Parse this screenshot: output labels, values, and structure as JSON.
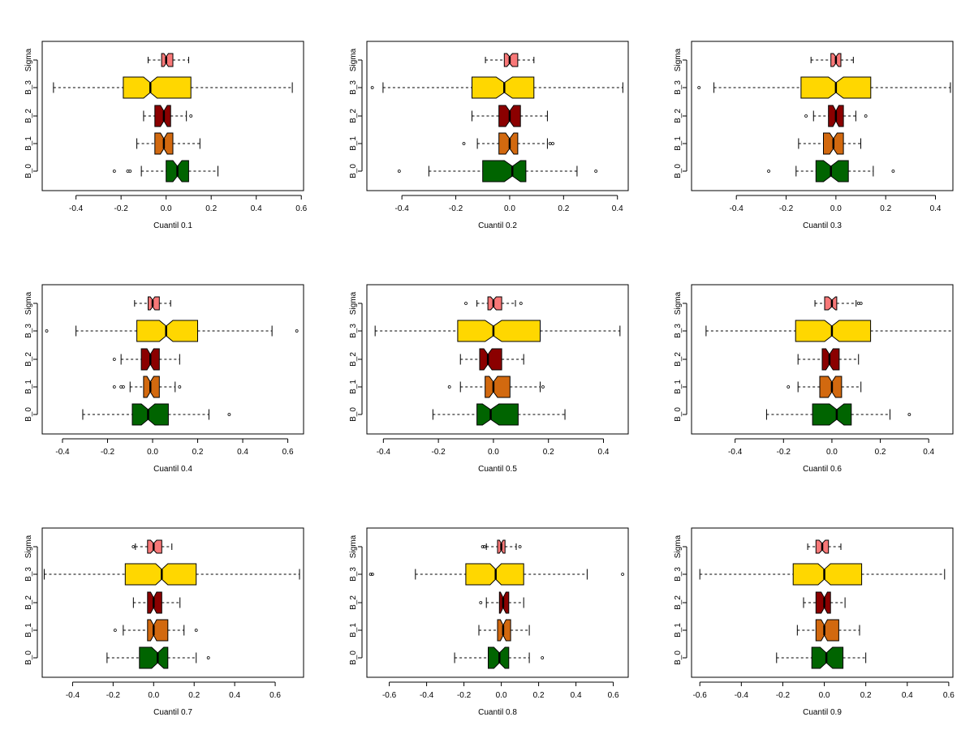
{
  "colors": {
    "Sigma": "#f87878",
    "B_3": "#ffd700",
    "B_2": "#8b0000",
    "B_1": "#d2690f",
    "B_0": "#006400"
  },
  "chart_data": [
    {
      "type": "boxplot",
      "orientation": "horizontal",
      "notched": true,
      "xlabel": "Cuantil 0.1",
      "xlim": [
        -0.55,
        0.61
      ],
      "xticks": [
        -0.4,
        -0.2,
        0.0,
        0.2,
        0.4,
        0.6
      ],
      "categories": [
        "B_0",
        "B_1",
        "B_2",
        "B_3",
        "Sigma"
      ],
      "boxes": {
        "Sigma": {
          "min": -0.08,
          "q1": -0.02,
          "median": 0.0,
          "q3": 0.03,
          "max": 0.1,
          "notch": [
            -0.01,
            0.01
          ],
          "outliers": []
        },
        "B_3": {
          "min": -0.5,
          "q1": -0.19,
          "median": -0.07,
          "q3": 0.11,
          "max": 0.56,
          "notch": [
            -0.1,
            -0.04
          ],
          "outliers": []
        },
        "B_2": {
          "min": -0.1,
          "q1": -0.05,
          "median": -0.01,
          "q3": 0.02,
          "max": 0.09,
          "notch": [
            -0.025,
            0.005
          ],
          "outliers": [
            0.11
          ]
        },
        "B_1": {
          "min": -0.13,
          "q1": -0.05,
          "median": -0.01,
          "q3": 0.03,
          "max": 0.15,
          "notch": [
            -0.025,
            0.005
          ],
          "outliers": []
        },
        "B_0": {
          "min": -0.11,
          "q1": -0.0,
          "median": 0.05,
          "q3": 0.1,
          "max": 0.23,
          "notch": [
            0.03,
            0.07
          ],
          "outliers": [
            -0.17,
            -0.16,
            -0.23
          ]
        }
      }
    },
    {
      "type": "boxplot",
      "orientation": "horizontal",
      "notched": true,
      "xlabel": "Cuantil 0.2",
      "xlim": [
        -0.53,
        0.44
      ],
      "xticks": [
        -0.4,
        -0.2,
        0.0,
        0.2,
        0.4
      ],
      "categories": [
        "B_0",
        "B_1",
        "B_2",
        "B_3",
        "Sigma"
      ],
      "boxes": {
        "Sigma": {
          "min": -0.09,
          "q1": -0.02,
          "median": 0.0,
          "q3": 0.03,
          "max": 0.09,
          "notch": [
            -0.01,
            0.01
          ],
          "outliers": []
        },
        "B_3": {
          "min": -0.47,
          "q1": -0.14,
          "median": -0.02,
          "q3": 0.09,
          "max": 0.42,
          "notch": [
            -0.05,
            0.01
          ],
          "outliers": [
            -0.51
          ]
        },
        "B_2": {
          "min": -0.14,
          "q1": -0.04,
          "median": 0.0,
          "q3": 0.04,
          "max": 0.14,
          "notch": [
            -0.015,
            0.015
          ],
          "outliers": []
        },
        "B_1": {
          "min": -0.12,
          "q1": -0.04,
          "median": 0.0,
          "q3": 0.03,
          "max": 0.14,
          "notch": [
            -0.015,
            0.015
          ],
          "outliers": [
            -0.17,
            0.15,
            0.16
          ]
        },
        "B_0": {
          "min": -0.3,
          "q1": -0.1,
          "median": 0.01,
          "q3": 0.06,
          "max": 0.25,
          "notch": [
            -0.02,
            0.04
          ],
          "outliers": [
            -0.41,
            0.32
          ]
        }
      }
    },
    {
      "type": "boxplot",
      "orientation": "horizontal",
      "notched": true,
      "xlabel": "Cuantil 0.3",
      "xlim": [
        -0.58,
        0.47
      ],
      "xticks": [
        -0.4,
        -0.2,
        0.0,
        0.2,
        0.4
      ],
      "categories": [
        "B_0",
        "B_1",
        "B_2",
        "B_3",
        "Sigma"
      ],
      "boxes": {
        "Sigma": {
          "min": -0.1,
          "q1": -0.02,
          "median": 0.0,
          "q3": 0.02,
          "max": 0.07,
          "notch": [
            -0.01,
            0.01
          ],
          "outliers": []
        },
        "B_3": {
          "min": -0.49,
          "q1": -0.14,
          "median": 0.0,
          "q3": 0.14,
          "max": 0.46,
          "notch": [
            -0.03,
            0.03
          ],
          "outliers": [
            -0.55
          ]
        },
        "B_2": {
          "min": -0.09,
          "q1": -0.03,
          "median": 0.0,
          "q3": 0.03,
          "max": 0.08,
          "notch": [
            -0.012,
            0.012
          ],
          "outliers": [
            -0.12,
            0.12
          ]
        },
        "B_1": {
          "min": -0.15,
          "q1": -0.05,
          "median": -0.01,
          "q3": 0.03,
          "max": 0.1,
          "notch": [
            -0.025,
            0.005
          ],
          "outliers": []
        },
        "B_0": {
          "min": -0.16,
          "q1": -0.08,
          "median": -0.02,
          "q3": 0.05,
          "max": 0.15,
          "notch": [
            -0.05,
            0.01
          ],
          "outliers": [
            -0.27,
            0.23
          ]
        }
      }
    },
    {
      "type": "boxplot",
      "orientation": "horizontal",
      "notched": true,
      "xlabel": "Cuantil 0.4",
      "xlim": [
        -0.49,
        0.67
      ],
      "xticks": [
        -0.4,
        -0.2,
        0.0,
        0.2,
        0.4,
        0.6
      ],
      "categories": [
        "B_0",
        "B_1",
        "B_2",
        "B_3",
        "Sigma"
      ],
      "boxes": {
        "Sigma": {
          "min": -0.08,
          "q1": -0.02,
          "median": 0.0,
          "q3": 0.03,
          "max": 0.08,
          "notch": [
            -0.01,
            0.01
          ],
          "outliers": []
        },
        "B_3": {
          "min": -0.34,
          "q1": -0.07,
          "median": 0.06,
          "q3": 0.2,
          "max": 0.53,
          "notch": [
            0.03,
            0.09
          ],
          "outliers": [
            -0.47,
            0.64
          ]
        },
        "B_2": {
          "min": -0.14,
          "q1": -0.05,
          "median": -0.01,
          "q3": 0.03,
          "max": 0.12,
          "notch": [
            -0.025,
            0.005
          ],
          "outliers": [
            -0.17
          ]
        },
        "B_1": {
          "min": -0.1,
          "q1": -0.04,
          "median": -0.01,
          "q3": 0.03,
          "max": 0.1,
          "notch": [
            -0.025,
            0.005
          ],
          "outliers": [
            -0.17,
            -0.14,
            -0.13,
            0.12
          ]
        },
        "B_0": {
          "min": -0.31,
          "q1": -0.09,
          "median": -0.02,
          "q3": 0.07,
          "max": 0.25,
          "notch": [
            -0.05,
            0.01
          ],
          "outliers": [
            0.34
          ]
        }
      }
    },
    {
      "type": "boxplot",
      "orientation": "horizontal",
      "notched": true,
      "xlabel": "Cuantil 0.5",
      "xlim": [
        -0.46,
        0.49
      ],
      "xticks": [
        -0.4,
        -0.2,
        0.0,
        0.2,
        0.4
      ],
      "categories": [
        "B_0",
        "B_1",
        "B_2",
        "B_3",
        "Sigma"
      ],
      "boxes": {
        "Sigma": {
          "min": -0.06,
          "q1": -0.02,
          "median": 0.0,
          "q3": 0.03,
          "max": 0.08,
          "notch": [
            -0.01,
            0.01
          ],
          "outliers": [
            -0.1,
            0.1
          ]
        },
        "B_3": {
          "min": -0.43,
          "q1": -0.13,
          "median": 0.0,
          "q3": 0.17,
          "max": 0.46,
          "notch": [
            -0.03,
            0.03
          ],
          "outliers": []
        },
        "B_2": {
          "min": -0.12,
          "q1": -0.05,
          "median": -0.02,
          "q3": 0.03,
          "max": 0.11,
          "notch": [
            -0.035,
            -0.005
          ],
          "outliers": []
        },
        "B_1": {
          "min": -0.12,
          "q1": -0.03,
          "median": 0.0,
          "q3": 0.06,
          "max": 0.17,
          "notch": [
            -0.015,
            0.015
          ],
          "outliers": [
            -0.16,
            0.18
          ]
        },
        "B_0": {
          "min": -0.22,
          "q1": -0.06,
          "median": -0.01,
          "q3": 0.09,
          "max": 0.26,
          "notch": [
            -0.04,
            0.02
          ],
          "outliers": []
        }
      }
    },
    {
      "type": "boxplot",
      "orientation": "horizontal",
      "notched": true,
      "xlabel": "Cuantil 0.6",
      "xlim": [
        -0.58,
        0.5
      ],
      "xticks": [
        -0.4,
        -0.2,
        0.0,
        0.2,
        0.4
      ],
      "categories": [
        "B_0",
        "B_1",
        "B_2",
        "B_3",
        "Sigma"
      ],
      "boxes": {
        "Sigma": {
          "min": -0.07,
          "q1": -0.03,
          "median": 0.0,
          "q3": 0.02,
          "max": 0.1,
          "notch": [
            -0.015,
            0.015
          ],
          "outliers": [
            0.11,
            0.12
          ]
        },
        "B_3": {
          "min": -0.52,
          "q1": -0.15,
          "median": 0.0,
          "q3": 0.16,
          "max": 0.5,
          "notch": [
            -0.03,
            0.03
          ],
          "outliers": []
        },
        "B_2": {
          "min": -0.14,
          "q1": -0.04,
          "median": -0.01,
          "q3": 0.03,
          "max": 0.11,
          "notch": [
            -0.025,
            0.005
          ],
          "outliers": []
        },
        "B_1": {
          "min": -0.14,
          "q1": -0.05,
          "median": 0.0,
          "q3": 0.04,
          "max": 0.12,
          "notch": [
            -0.015,
            0.015
          ],
          "outliers": [
            -0.18
          ]
        },
        "B_0": {
          "min": -0.27,
          "q1": -0.08,
          "median": 0.02,
          "q3": 0.08,
          "max": 0.24,
          "notch": [
            -0.01,
            0.05
          ],
          "outliers": [
            0.32
          ]
        }
      }
    },
    {
      "type": "boxplot",
      "orientation": "horizontal",
      "notched": true,
      "xlabel": "Cuantil 0.7",
      "xlim": [
        -0.55,
        0.74
      ],
      "xticks": [
        -0.4,
        -0.2,
        0.0,
        0.2,
        0.4,
        0.6
      ],
      "categories": [
        "B_0",
        "B_1",
        "B_2",
        "B_3",
        "Sigma"
      ],
      "boxes": {
        "Sigma": {
          "min": -0.09,
          "q1": -0.03,
          "median": 0.0,
          "q3": 0.04,
          "max": 0.09,
          "notch": [
            -0.015,
            0.015
          ],
          "outliers": [
            -0.1
          ]
        },
        "B_3": {
          "min": -0.54,
          "q1": -0.14,
          "median": 0.04,
          "q3": 0.21,
          "max": 0.72,
          "notch": [
            0.01,
            0.07
          ],
          "outliers": []
        },
        "B_2": {
          "min": -0.1,
          "q1": -0.03,
          "median": 0.0,
          "q3": 0.04,
          "max": 0.13,
          "notch": [
            -0.015,
            0.015
          ],
          "outliers": []
        },
        "B_1": {
          "min": -0.15,
          "q1": -0.03,
          "median": 0.0,
          "q3": 0.07,
          "max": 0.15,
          "notch": [
            -0.015,
            0.015
          ],
          "outliers": [
            -0.19,
            0.21
          ]
        },
        "B_0": {
          "min": -0.23,
          "q1": -0.07,
          "median": 0.02,
          "q3": 0.07,
          "max": 0.21,
          "notch": [
            -0.01,
            0.05
          ],
          "outliers": [
            0.27
          ]
        }
      }
    },
    {
      "type": "boxplot",
      "orientation": "horizontal",
      "notched": true,
      "xlabel": "Cuantil 0.8",
      "xlim": [
        -0.72,
        0.68
      ],
      "xticks": [
        -0.6,
        -0.4,
        -0.2,
        0.0,
        0.2,
        0.4,
        0.6
      ],
      "categories": [
        "B_0",
        "B_1",
        "B_2",
        "B_3",
        "Sigma"
      ],
      "boxes": {
        "Sigma": {
          "min": -0.08,
          "q1": -0.02,
          "median": 0.0,
          "q3": 0.02,
          "max": 0.08,
          "notch": [
            -0.01,
            0.01
          ],
          "outliers": [
            -0.1,
            -0.09,
            0.1
          ]
        },
        "B_3": {
          "min": -0.46,
          "q1": -0.19,
          "median": -0.03,
          "q3": 0.12,
          "max": 0.46,
          "notch": [
            -0.06,
            0.0
          ],
          "outliers": [
            -0.7,
            -0.69,
            0.65
          ]
        },
        "B_2": {
          "min": -0.08,
          "q1": -0.01,
          "median": 0.01,
          "q3": 0.04,
          "max": 0.12,
          "notch": [
            -0.005,
            0.025
          ],
          "outliers": [
            -0.11
          ]
        },
        "B_1": {
          "min": -0.12,
          "q1": -0.02,
          "median": 0.01,
          "q3": 0.05,
          "max": 0.15,
          "notch": [
            -0.005,
            0.025
          ],
          "outliers": []
        },
        "B_0": {
          "min": -0.25,
          "q1": -0.07,
          "median": -0.01,
          "q3": 0.04,
          "max": 0.15,
          "notch": [
            -0.04,
            0.02
          ],
          "outliers": [
            0.22
          ]
        }
      }
    },
    {
      "type": "boxplot",
      "orientation": "horizontal",
      "notched": true,
      "xlabel": "Cuantil 0.9",
      "xlim": [
        -0.64,
        0.62
      ],
      "xticks": [
        -0.6,
        -0.4,
        -0.2,
        0.0,
        0.2,
        0.4,
        0.6
      ],
      "categories": [
        "B_0",
        "B_1",
        "B_2",
        "B_3",
        "Sigma"
      ],
      "boxes": {
        "Sigma": {
          "min": -0.08,
          "q1": -0.04,
          "median": -0.01,
          "q3": 0.02,
          "max": 0.08,
          "notch": [
            -0.025,
            0.005
          ],
          "outliers": []
        },
        "B_3": {
          "min": -0.6,
          "q1": -0.15,
          "median": 0.0,
          "q3": 0.18,
          "max": 0.58,
          "notch": [
            -0.03,
            0.03
          ],
          "outliers": []
        },
        "B_2": {
          "min": -0.1,
          "q1": -0.04,
          "median": 0.0,
          "q3": 0.03,
          "max": 0.1,
          "notch": [
            -0.015,
            0.015
          ],
          "outliers": []
        },
        "B_1": {
          "min": -0.13,
          "q1": -0.04,
          "median": 0.0,
          "q3": 0.07,
          "max": 0.17,
          "notch": [
            -0.015,
            0.015
          ],
          "outliers": []
        },
        "B_0": {
          "min": -0.23,
          "q1": -0.06,
          "median": 0.01,
          "q3": 0.09,
          "max": 0.2,
          "notch": [
            -0.02,
            0.04
          ],
          "outliers": []
        }
      }
    }
  ]
}
